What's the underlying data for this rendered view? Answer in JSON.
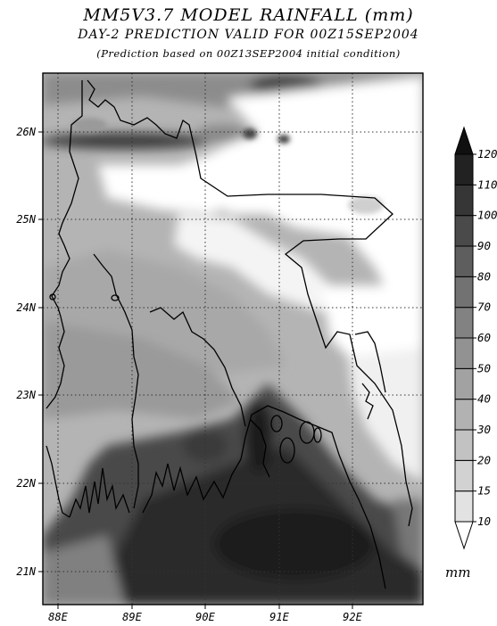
{
  "header": {
    "title": "MM5V3.7 MODEL RAINFALL (mm)",
    "subtitle": "DAY-2 PREDICTION VALID FOR 00Z15SEP2004",
    "note": "(Prediction based on 00Z13SEP2004 initial condition)"
  },
  "map": {
    "lon_range": [
      87.8,
      92.8
    ],
    "lat_range": [
      20.6,
      26.7
    ],
    "lat_labels": [
      "21N",
      "22N",
      "23N",
      "24N",
      "25N",
      "26N"
    ],
    "lon_labels": [
      "88E",
      "89E",
      "90E",
      "91E",
      "92E"
    ],
    "gridlines": true,
    "coastline": "black"
  },
  "colorbar": {
    "levels": [
      "10",
      "15",
      "20",
      "30",
      "40",
      "50",
      "60",
      "70",
      "80",
      "90",
      "100",
      "110",
      "120"
    ],
    "colors": [
      "#ffffff",
      "#e2e2e2",
      "#d2d2d2",
      "#c2c2c2",
      "#b2b2b2",
      "#a2a2a2",
      "#929292",
      "#828282",
      "#727272",
      "#5e5e5e",
      "#4a4a4a",
      "#363636",
      "#222222",
      "#101010"
    ],
    "unit": "mm"
  }
}
